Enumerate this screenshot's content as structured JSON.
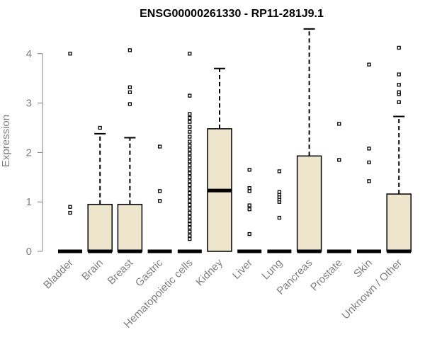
{
  "chart_data": {
    "type": "box",
    "title": "ENSG00000261330 - RP11-281J9.1",
    "xlabel": "",
    "ylabel": "Expression",
    "ylim": [
      0,
      4.5
    ],
    "yticks": [
      0,
      1,
      2,
      3,
      4
    ],
    "grid": false,
    "box_fill": "#ede6cd",
    "categories": [
      "Bladder",
      "Brain",
      "Breast",
      "Gastric",
      "Hematopoietic cells",
      "Kidney",
      "Liver",
      "Lung",
      "Pancreas",
      "Prostate",
      "Skin",
      "Unknown / Other"
    ],
    "boxes": [
      {
        "q1": 0,
        "median": 0,
        "q3": 0,
        "whisker_low": 0,
        "whisker_high": 0,
        "outliers": [
          0.78,
          0.9,
          4.0
        ]
      },
      {
        "q1": 0,
        "median": 0,
        "q3": 0.95,
        "whisker_low": 0,
        "whisker_high": 2.38,
        "outliers": [
          2.5
        ]
      },
      {
        "q1": 0,
        "median": 0,
        "q3": 0.95,
        "whisker_low": 0,
        "whisker_high": 2.3,
        "outliers": [
          2.98,
          3.22,
          3.32,
          4.07
        ]
      },
      {
        "q1": 0,
        "median": 0,
        "q3": 0,
        "whisker_low": 0,
        "whisker_high": 0,
        "outliers": [
          1.02,
          1.22,
          2.12
        ]
      },
      {
        "q1": 0,
        "median": 0,
        "q3": 0,
        "whisker_low": 0,
        "whisker_high": 0,
        "outliers": [
          0.25,
          0.32,
          0.4,
          0.48,
          0.55,
          0.62,
          0.7,
          0.78,
          0.86,
          0.94,
          1.02,
          1.1,
          1.18,
          1.26,
          1.34,
          1.42,
          1.5,
          1.58,
          1.66,
          1.74,
          1.82,
          1.9,
          1.98,
          2.06,
          2.14,
          2.22,
          2.32,
          2.42,
          2.52,
          2.62,
          2.7,
          2.78,
          3.15,
          4.0
        ]
      },
      {
        "q1": 0,
        "median": 1.23,
        "q3": 2.48,
        "whisker_low": 0,
        "whisker_high": 3.7,
        "outliers": []
      },
      {
        "q1": 0,
        "median": 0,
        "q3": 0,
        "whisker_low": 0,
        "whisker_high": 0,
        "outliers": [
          0.35,
          0.85,
          0.93,
          1.22,
          1.28,
          1.65
        ]
      },
      {
        "q1": 0,
        "median": 0,
        "q3": 0,
        "whisker_low": 0,
        "whisker_high": 0,
        "outliers": [
          0.68,
          1.0,
          1.05,
          1.1,
          1.15,
          1.2,
          1.62
        ]
      },
      {
        "q1": 0,
        "median": 0,
        "q3": 1.93,
        "whisker_low": 0,
        "whisker_high": 4.5,
        "outliers": []
      },
      {
        "q1": 0,
        "median": 0,
        "q3": 0,
        "whisker_low": 0,
        "whisker_high": 0,
        "outliers": [
          1.85,
          2.58
        ]
      },
      {
        "q1": 0,
        "median": 0,
        "q3": 0,
        "whisker_low": 0,
        "whisker_high": 0,
        "outliers": [
          1.42,
          1.8,
          2.08,
          3.78
        ]
      },
      {
        "q1": 0,
        "median": 0,
        "q3": 1.16,
        "whisker_low": 0,
        "whisker_high": 2.73,
        "outliers": [
          3.02,
          3.18,
          3.22,
          3.37,
          3.58,
          4.12
        ]
      }
    ]
  }
}
